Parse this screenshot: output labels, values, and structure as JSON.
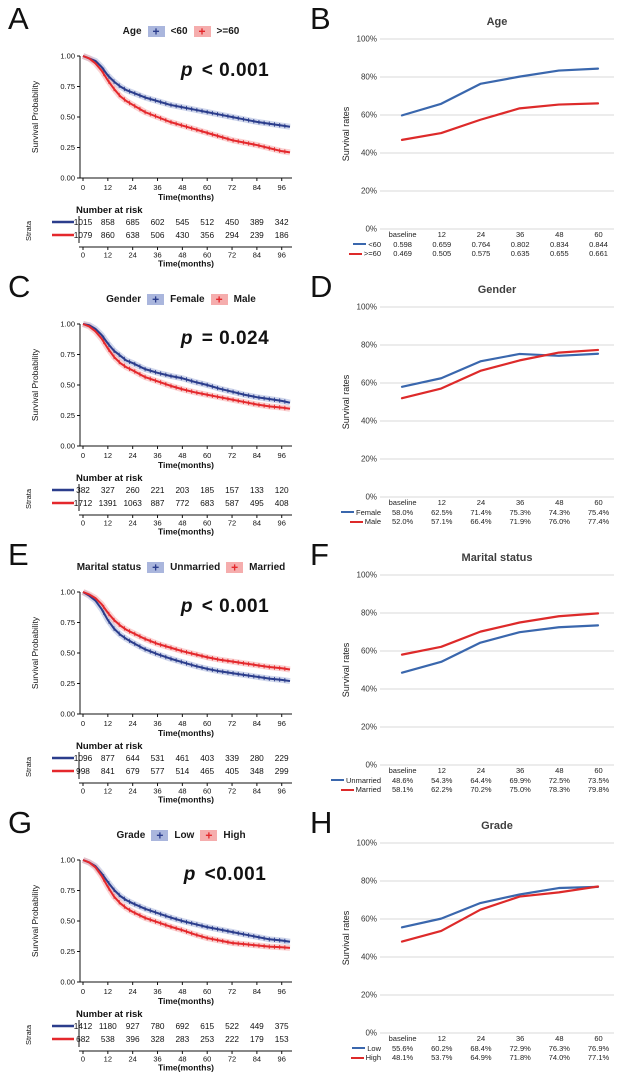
{
  "colors": {
    "km_blue": "#2b3d8c",
    "km_blue_band": "#aab6dd",
    "km_red": "#e4282c",
    "km_red_band": "#f5adad",
    "rate_blue": "#3a67ad",
    "rate_red": "#dd2a2a",
    "grid": "#d9d9d9",
    "axis": "#111111"
  },
  "chart_data": [
    {
      "type": "km",
      "letter": "A",
      "legend_title": "Age",
      "p_prefix": "p",
      "p_rest": " < 0.001",
      "ylabel": "Survival Probability",
      "xlabel": "Time(months)",
      "risk_title": "Number at risk",
      "strata_label": "Strata",
      "yticks": [
        "1.00",
        "0.75",
        "0.50",
        "0.25",
        "0.00"
      ],
      "xticks": [
        0,
        12,
        24,
        36,
        48,
        60,
        72,
        84,
        96
      ],
      "xlim": [
        0,
        100
      ],
      "ylim": [
        0,
        1
      ],
      "curve_x": [
        0,
        3,
        6,
        9,
        12,
        15,
        18,
        21,
        24,
        30,
        36,
        42,
        48,
        54,
        60,
        66,
        72,
        78,
        84,
        90,
        96,
        100
      ],
      "series": [
        {
          "name": "<60",
          "color": "blue",
          "curve_y": [
            1.0,
            0.98,
            0.96,
            0.91,
            0.84,
            0.79,
            0.75,
            0.72,
            0.7,
            0.66,
            0.63,
            0.6,
            0.58,
            0.56,
            0.54,
            0.52,
            0.5,
            0.48,
            0.46,
            0.445,
            0.43,
            0.42
          ],
          "risk": [
            1015,
            858,
            685,
            602,
            545,
            512,
            450,
            389,
            342
          ]
        },
        {
          "name": ">=60",
          "color": "red",
          "curve_y": [
            1.0,
            0.98,
            0.94,
            0.88,
            0.8,
            0.73,
            0.67,
            0.63,
            0.6,
            0.54,
            0.5,
            0.46,
            0.43,
            0.4,
            0.37,
            0.34,
            0.31,
            0.29,
            0.27,
            0.245,
            0.22,
            0.21
          ],
          "risk": [
            1079,
            860,
            638,
            506,
            430,
            356,
            294,
            239,
            186
          ]
        }
      ]
    },
    {
      "type": "rates",
      "letter": "B",
      "title": "Age",
      "ylabel": "Survival rates",
      "yticks": [
        "100%",
        "80%",
        "60%",
        "40%",
        "20%",
        "0%"
      ],
      "ylim": [
        0,
        100
      ],
      "grid": true,
      "categories": [
        "baseline",
        "12",
        "24",
        "36",
        "48",
        "60"
      ],
      "series": [
        {
          "name": "<60",
          "color": "blue",
          "values": [
            59.8,
            65.9,
            76.4,
            80.2,
            83.4,
            84.4
          ],
          "labels": [
            "0.598",
            "0.659",
            "0.764",
            "0.802",
            "0.834",
            "0.844"
          ]
        },
        {
          "name": ">=60",
          "color": "red",
          "values": [
            46.9,
            50.5,
            57.5,
            63.5,
            65.5,
            66.1
          ],
          "labels": [
            "0.469",
            "0.505",
            "0.575",
            "0.635",
            "0.655",
            "0.661"
          ]
        }
      ]
    },
    {
      "type": "km",
      "letter": "C",
      "legend_title": "Gender",
      "p_prefix": "p",
      "p_rest": " = 0.024",
      "ylabel": "Survival Probability",
      "xlabel": "Time(months)",
      "risk_title": "Number at risk",
      "strata_label": "Strata",
      "yticks": [
        "1.00",
        "0.75",
        "0.50",
        "0.25",
        "0.00"
      ],
      "xticks": [
        0,
        12,
        24,
        36,
        48,
        60,
        72,
        84,
        96
      ],
      "xlim": [
        0,
        100
      ],
      "ylim": [
        0,
        1
      ],
      "curve_x": [
        0,
        3,
        6,
        9,
        12,
        15,
        18,
        21,
        24,
        30,
        36,
        42,
        48,
        54,
        60,
        66,
        72,
        78,
        84,
        90,
        96,
        100
      ],
      "series": [
        {
          "name": "Female",
          "color": "blue",
          "curve_y": [
            1.0,
            0.99,
            0.96,
            0.91,
            0.84,
            0.78,
            0.74,
            0.7,
            0.68,
            0.63,
            0.6,
            0.575,
            0.555,
            0.525,
            0.5,
            0.47,
            0.445,
            0.42,
            0.4,
            0.385,
            0.37,
            0.355
          ],
          "risk": [
            382,
            327,
            260,
            221,
            203,
            185,
            157,
            133,
            120
          ]
        },
        {
          "name": "Male",
          "color": "red",
          "curve_y": [
            1.0,
            0.98,
            0.94,
            0.88,
            0.8,
            0.73,
            0.68,
            0.645,
            0.62,
            0.565,
            0.53,
            0.495,
            0.465,
            0.44,
            0.42,
            0.4,
            0.38,
            0.36,
            0.34,
            0.325,
            0.315,
            0.305
          ],
          "risk": [
            1712,
            1391,
            1063,
            887,
            772,
            683,
            587,
            495,
            408
          ]
        }
      ]
    },
    {
      "type": "rates",
      "letter": "D",
      "title": "Gender",
      "ylabel": "Survival rates",
      "yticks": [
        "100%",
        "80%",
        "60%",
        "40%",
        "20%",
        "0%"
      ],
      "ylim": [
        0,
        100
      ],
      "grid": true,
      "categories": [
        "baseline",
        "12",
        "24",
        "36",
        "48",
        "60"
      ],
      "series": [
        {
          "name": "Female",
          "color": "blue",
          "values": [
            58.0,
            62.5,
            71.4,
            75.3,
            74.3,
            75.4
          ],
          "labels": [
            "58.0%",
            "62.5%",
            "71.4%",
            "75.3%",
            "74.3%",
            "75.4%"
          ]
        },
        {
          "name": "Male",
          "color": "red",
          "values": [
            52.0,
            57.1,
            66.4,
            71.9,
            76.0,
            77.4
          ],
          "labels": [
            "52.0%",
            "57.1%",
            "66.4%",
            "71.9%",
            "76.0%",
            "77.4%"
          ]
        }
      ]
    },
    {
      "type": "km",
      "letter": "E",
      "legend_title": "Marital status",
      "p_prefix": "p",
      "p_rest": " < 0.001",
      "ylabel": "Survival Probability",
      "xlabel": "Time(months)",
      "risk_title": "Number at risk",
      "strata_label": "Strata",
      "yticks": [
        "1.00",
        "0.75",
        "0.50",
        "0.25",
        "0.00"
      ],
      "xticks": [
        0,
        12,
        24,
        36,
        48,
        60,
        72,
        84,
        96
      ],
      "xlim": [
        0,
        100
      ],
      "ylim": [
        0,
        1
      ],
      "curve_x": [
        0,
        3,
        6,
        9,
        12,
        15,
        18,
        21,
        24,
        30,
        36,
        42,
        48,
        54,
        60,
        66,
        72,
        78,
        84,
        90,
        96,
        100
      ],
      "series": [
        {
          "name": "Unmarried",
          "color": "blue",
          "curve_y": [
            1.0,
            0.97,
            0.93,
            0.86,
            0.77,
            0.7,
            0.65,
            0.615,
            0.585,
            0.53,
            0.49,
            0.455,
            0.425,
            0.395,
            0.37,
            0.35,
            0.335,
            0.32,
            0.305,
            0.29,
            0.28,
            0.27
          ],
          "risk": [
            1096,
            877,
            644,
            531,
            461,
            403,
            339,
            280,
            229
          ]
        },
        {
          "name": "Married",
          "color": "red",
          "curve_y": [
            1.0,
            0.98,
            0.95,
            0.9,
            0.83,
            0.77,
            0.725,
            0.69,
            0.665,
            0.615,
            0.575,
            0.545,
            0.515,
            0.49,
            0.465,
            0.445,
            0.43,
            0.415,
            0.4,
            0.385,
            0.375,
            0.365
          ],
          "risk": [
            998,
            841,
            679,
            577,
            514,
            465,
            405,
            348,
            299
          ]
        }
      ]
    },
    {
      "type": "rates",
      "letter": "F",
      "title": "Marital status",
      "ylabel": "Survival rates",
      "yticks": [
        "100%",
        "80%",
        "60%",
        "40%",
        "20%",
        "0%"
      ],
      "ylim": [
        0,
        100
      ],
      "grid": true,
      "categories": [
        "baseline",
        "12",
        "24",
        "36",
        "48",
        "60"
      ],
      "series": [
        {
          "name": "Unmarried",
          "color": "blue",
          "values": [
            48.6,
            54.3,
            64.4,
            69.9,
            72.5,
            73.5
          ],
          "labels": [
            "48.6%",
            "54.3%",
            "64.4%",
            "69.9%",
            "72.5%",
            "73.5%"
          ]
        },
        {
          "name": "Married",
          "color": "red",
          "values": [
            58.1,
            62.2,
            70.2,
            75.0,
            78.3,
            79.8
          ],
          "labels": [
            "58.1%",
            "62.2%",
            "70.2%",
            "75.0%",
            "78.3%",
            "79.8%"
          ]
        }
      ]
    },
    {
      "type": "km",
      "letter": "G",
      "legend_title": "Grade",
      "p_prefix": "p",
      "p_rest": " <0.001",
      "ylabel": "Survival Probability",
      "xlabel": "Time(months)",
      "risk_title": "Number at risk",
      "strata_label": "Strata",
      "yticks": [
        "1.00",
        "0.75",
        "0.50",
        "0.25",
        "0.00"
      ],
      "xticks": [
        0,
        12,
        24,
        36,
        48,
        60,
        72,
        84,
        96
      ],
      "xlim": [
        0,
        100
      ],
      "ylim": [
        0,
        1
      ],
      "curve_x": [
        0,
        3,
        6,
        9,
        12,
        15,
        18,
        21,
        24,
        30,
        36,
        42,
        48,
        54,
        60,
        66,
        72,
        78,
        84,
        90,
        96,
        100
      ],
      "series": [
        {
          "name": "Low",
          "color": "blue",
          "curve_y": [
            1.0,
            0.98,
            0.95,
            0.89,
            0.82,
            0.755,
            0.705,
            0.67,
            0.645,
            0.6,
            0.565,
            0.53,
            0.5,
            0.475,
            0.45,
            0.43,
            0.41,
            0.39,
            0.37,
            0.35,
            0.34,
            0.33
          ],
          "risk": [
            1412,
            1180,
            927,
            780,
            692,
            615,
            522,
            449,
            375
          ]
        },
        {
          "name": "High",
          "color": "red",
          "curve_y": [
            1.0,
            0.98,
            0.94,
            0.87,
            0.78,
            0.7,
            0.645,
            0.605,
            0.575,
            0.525,
            0.49,
            0.455,
            0.425,
            0.39,
            0.36,
            0.34,
            0.32,
            0.31,
            0.3,
            0.29,
            0.285,
            0.28
          ],
          "risk": [
            682,
            538,
            396,
            328,
            283,
            253,
            222,
            179,
            153
          ]
        }
      ]
    },
    {
      "type": "rates",
      "letter": "H",
      "title": "Grade",
      "ylabel": "Survival rates",
      "yticks": [
        "100%",
        "80%",
        "60%",
        "40%",
        "20%",
        "0%"
      ],
      "ylim": [
        0,
        100
      ],
      "grid": true,
      "categories": [
        "baseline",
        "12",
        "24",
        "36",
        "48",
        "60"
      ],
      "series": [
        {
          "name": "Low",
          "color": "blue",
          "values": [
            55.6,
            60.2,
            68.4,
            72.9,
            76.3,
            76.9
          ],
          "labels": [
            "55.6%",
            "60.2%",
            "68.4%",
            "72.9%",
            "76.3%",
            "76.9%"
          ]
        },
        {
          "name": "High",
          "color": "red",
          "values": [
            48.1,
            53.7,
            64.9,
            71.8,
            74.0,
            77.1
          ],
          "labels": [
            "48.1%",
            "53.7%",
            "64.9%",
            "71.8%",
            "74.0%",
            "77.1%"
          ]
        }
      ]
    }
  ]
}
